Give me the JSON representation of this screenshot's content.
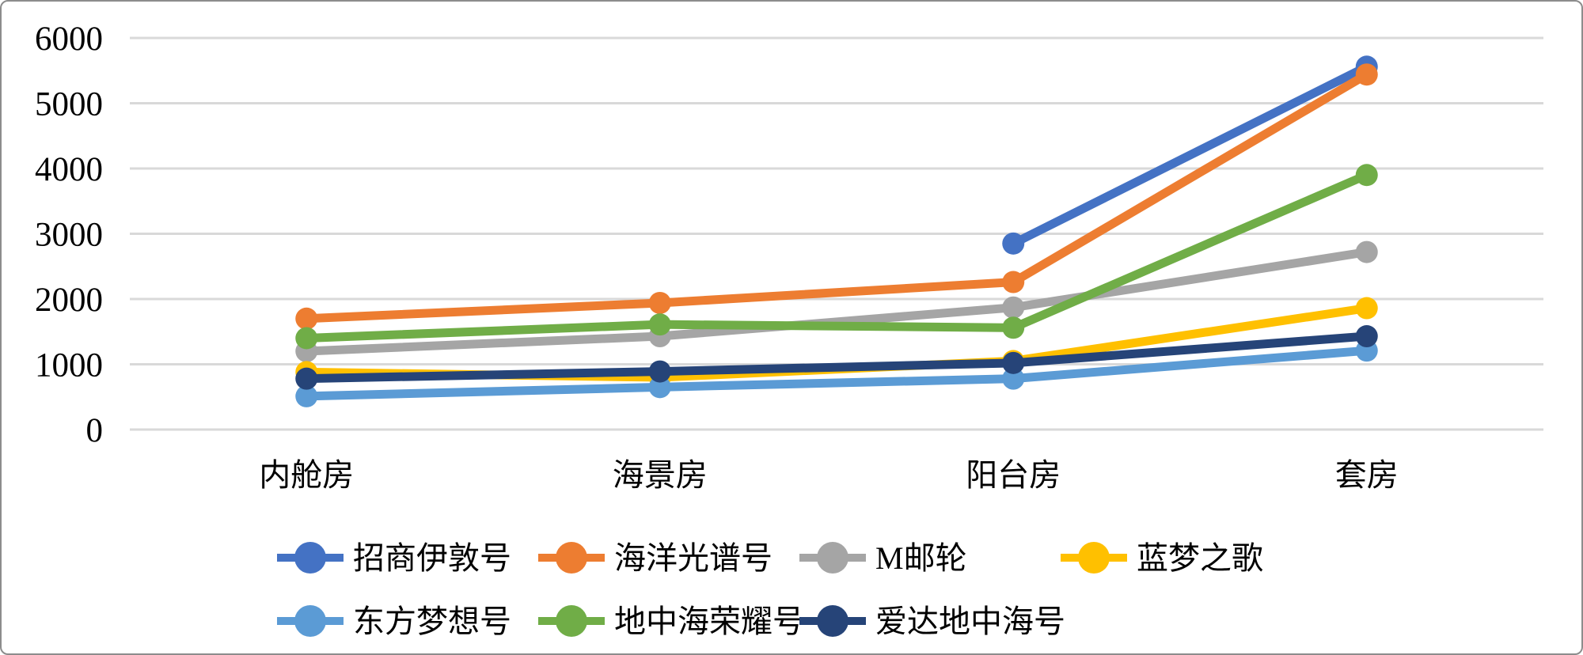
{
  "chart_data": {
    "type": "line",
    "title": "",
    "xlabel": "",
    "ylabel": "",
    "categories": [
      "内舱房",
      "海景房",
      "阳台房",
      "套房"
    ],
    "series": [
      {
        "name": "招商伊敦号",
        "color": "#4472C4",
        "values": [
          null,
          null,
          2850,
          5560
        ]
      },
      {
        "name": "海洋光谱号",
        "color": "#ED7D31",
        "values": [
          1700,
          1940,
          2260,
          5440
        ]
      },
      {
        "name": "M邮轮",
        "color": "#A5A5A5",
        "values": [
          1200,
          1430,
          1870,
          2720
        ]
      },
      {
        "name": "蓝梦之歌",
        "color": "#FFC000",
        "values": [
          880,
          800,
          1050,
          1860
        ]
      },
      {
        "name": "东方梦想号",
        "color": "#5B9BD5",
        "values": [
          510,
          650,
          780,
          1210
        ]
      },
      {
        "name": "地中海荣耀号",
        "color": "#70AD47",
        "values": [
          1400,
          1610,
          1560,
          3900
        ]
      },
      {
        "name": "爱达地中海号",
        "color": "#264478",
        "values": [
          780,
          890,
          1020,
          1430
        ]
      }
    ],
    "ylim": [
      0,
      6000
    ],
    "ytick_step": 1000,
    "ytick_labels": [
      "0",
      "1000",
      "2000",
      "3000",
      "4000",
      "5000",
      "6000"
    ],
    "grid": true,
    "gridline_color": "#D9D9D9",
    "text_color": "#000000",
    "background_color": "#FFFFFF",
    "border_color": "#8C8C8C",
    "legend_position": "bottom",
    "legend_rows": [
      [
        "招商伊敦号",
        "海洋光谱号",
        "M邮轮",
        "蓝梦之歌"
      ],
      [
        "东方梦想号",
        "地中海荣耀号",
        "爱达地中海号"
      ]
    ]
  }
}
